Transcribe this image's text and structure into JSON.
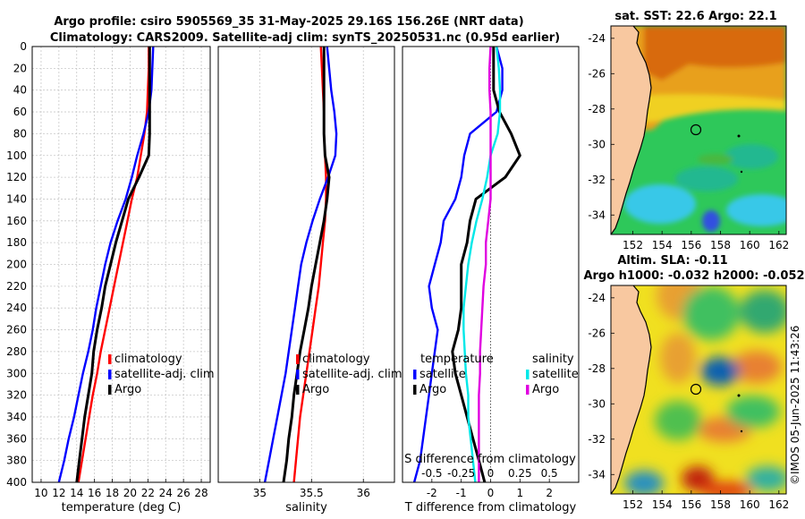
{
  "header": {
    "title_line1": "Argo profile: csiro 5905569_35 31-May-2025 29.16S 156.26E (NRT data)",
    "title_line2": "Climatology: CARS2009. Satellite-adj clim: synTS_20250531.nc (0.95d earlier)"
  },
  "colors": {
    "climatology": "#ff0000",
    "satellite": "#0000ff",
    "argo": "#000000",
    "sal_sat": "#00e8e8",
    "sal_argo": "#e000e0",
    "land": "#f8c8a0"
  },
  "chart_data": [
    {
      "type": "line",
      "name": "temperature",
      "xlabel": "temperature (deg C)",
      "ylabel": "",
      "xlim": [
        9,
        29
      ],
      "ylim": [
        400,
        0
      ],
      "x_ticks": [
        "10",
        "12",
        "14",
        "16",
        "18",
        "20",
        "22",
        "24",
        "26",
        "28"
      ],
      "y_ticks": [
        "0",
        "20",
        "40",
        "60",
        "80",
        "100",
        "120",
        "140",
        "160",
        "180",
        "200",
        "220",
        "240",
        "260",
        "280",
        "300",
        "320",
        "340",
        "360",
        "380",
        "400"
      ],
      "grid": true,
      "legend": [
        "climatology",
        "satellite-adj. clim",
        "Argo"
      ],
      "depth": [
        0,
        20,
        40,
        60,
        80,
        100,
        120,
        140,
        160,
        180,
        200,
        220,
        240,
        260,
        280,
        300,
        320,
        340,
        360,
        380,
        400
      ],
      "series": [
        {
          "name": "climatology",
          "values": [
            22.1,
            22.1,
            22.0,
            21.9,
            21.6,
            21.2,
            20.8,
            20.2,
            19.7,
            19.2,
            18.7,
            18.2,
            17.7,
            17.2,
            16.7,
            16.3,
            15.8,
            15.4,
            15.0,
            14.6,
            14.2
          ]
        },
        {
          "name": "satellite-adj. clim",
          "values": [
            22.6,
            22.5,
            22.4,
            22.1,
            21.5,
            20.8,
            20.2,
            19.5,
            18.6,
            17.8,
            17.2,
            16.7,
            16.2,
            15.8,
            15.3,
            14.7,
            14.2,
            13.7,
            13.1,
            12.6,
            12.0
          ]
        },
        {
          "name": "Argo",
          "values": [
            22.2,
            22.2,
            22.2,
            22.2,
            22.2,
            22.1,
            21.0,
            19.8,
            19.1,
            18.4,
            17.8,
            17.2,
            16.8,
            16.3,
            15.9,
            15.7,
            15.3,
            14.9,
            14.6,
            14.3,
            14.0
          ]
        }
      ]
    },
    {
      "type": "line",
      "name": "salinity",
      "xlabel": "salinity",
      "xlim": [
        34.6,
        36.3
      ],
      "ylim": [
        400,
        0
      ],
      "x_ticks": [
        "35",
        "35.5",
        "36"
      ],
      "grid": true,
      "legend": [
        "climatology",
        "satellite-adj. clim",
        "Argo"
      ],
      "depth": [
        0,
        20,
        40,
        60,
        80,
        100,
        120,
        140,
        160,
        180,
        200,
        220,
        240,
        260,
        280,
        300,
        320,
        340,
        360,
        380,
        400
      ],
      "series": [
        {
          "name": "climatology",
          "values": [
            35.59,
            35.6,
            35.61,
            35.62,
            35.62,
            35.63,
            35.64,
            35.64,
            35.63,
            35.61,
            35.59,
            35.57,
            35.54,
            35.51,
            35.48,
            35.45,
            35.42,
            35.39,
            35.37,
            35.35,
            35.33
          ]
        },
        {
          "name": "satellite-adj. clim",
          "values": [
            35.65,
            35.67,
            35.69,
            35.72,
            35.74,
            35.73,
            35.66,
            35.58,
            35.51,
            35.45,
            35.4,
            35.37,
            35.34,
            35.31,
            35.28,
            35.25,
            35.21,
            35.17,
            35.13,
            35.09,
            35.05
          ]
        },
        {
          "name": "Argo",
          "values": [
            35.62,
            35.62,
            35.62,
            35.62,
            35.62,
            35.63,
            35.67,
            35.65,
            35.62,
            35.58,
            35.54,
            35.5,
            35.47,
            35.43,
            35.39,
            35.36,
            35.33,
            35.31,
            35.28,
            35.26,
            35.23
          ]
        }
      ]
    },
    {
      "type": "line",
      "name": "difference from climatology",
      "xlabel": "T difference from climatology",
      "xlabel_top": "S difference from climatology",
      "xlim": [
        -3,
        3
      ],
      "ylim": [
        400,
        0
      ],
      "x_ticks": [
        "-2",
        "-1",
        "0",
        "1",
        "2"
      ],
      "x2_ticks": [
        "-0.5",
        "-0.25",
        "0",
        "0.25",
        "0.5"
      ],
      "legend_titles": [
        "temperature",
        "salinity"
      ],
      "legend": [
        "satellite",
        "Argo",
        "satellite",
        "Argo"
      ],
      "depth": [
        0,
        20,
        40,
        60,
        80,
        100,
        120,
        140,
        160,
        180,
        200,
        220,
        240,
        260,
        280,
        300,
        320,
        340,
        360,
        380,
        400
      ],
      "series": [
        {
          "name": "temperature satellite",
          "values": [
            0.2,
            0.4,
            0.4,
            0.2,
            -0.7,
            -0.9,
            -1.0,
            -1.2,
            -1.6,
            -1.7,
            -1.9,
            -2.1,
            -2.0,
            -1.8,
            -1.9,
            -2.0,
            -2.1,
            -2.2,
            -2.3,
            -2.4,
            -2.6
          ]
        },
        {
          "name": "temperature Argo",
          "values": [
            0.1,
            0.1,
            0.1,
            0.3,
            0.7,
            1.0,
            0.5,
            -0.5,
            -0.7,
            -0.8,
            -1.0,
            -1.0,
            -1.0,
            -1.1,
            -1.3,
            -1.2,
            -1.0,
            -0.8,
            -0.6,
            -0.4,
            -0.2
          ]
        },
        {
          "name": "salinity satellite",
          "values": [
            0.05,
            0.07,
            0.08,
            0.08,
            0.06,
            0.0,
            -0.03,
            -0.07,
            -0.12,
            -0.16,
            -0.19,
            -0.21,
            -0.23,
            -0.23,
            -0.22,
            -0.21,
            -0.19,
            -0.19,
            -0.17,
            -0.15,
            -0.13
          ]
        },
        {
          "name": "salinity Argo",
          "values": [
            0.0,
            -0.01,
            -0.01,
            0.0,
            0.0,
            0.0,
            0.0,
            0.0,
            -0.02,
            -0.04,
            -0.04,
            -0.06,
            -0.07,
            -0.08,
            -0.09,
            -0.09,
            -0.1,
            -0.1,
            -0.1,
            -0.1,
            -0.1
          ]
        }
      ]
    },
    {
      "type": "heatmap",
      "name": "sat SST map",
      "title": "sat. SST: 22.6 Argo: 22.1",
      "x_ticks": [
        "152",
        "154",
        "156",
        "158",
        "160",
        "162"
      ],
      "y_ticks": [
        "-24",
        "-26",
        "-28",
        "-30",
        "-32",
        "-34"
      ],
      "argo_position": {
        "lon": 156.26,
        "lat": -29.16
      }
    },
    {
      "type": "heatmap",
      "name": "altimetry SLA map",
      "title": "Altim. SLA: -0.11",
      "subtitle": "Argo h1000: -0.032 h2000: -0.052",
      "x_ticks": [
        "152",
        "154",
        "156",
        "158",
        "160",
        "162"
      ],
      "y_ticks": [
        "-24",
        "-26",
        "-28",
        "-30",
        "-32",
        "-34"
      ],
      "argo_position": {
        "lon": 156.26,
        "lat": -29.16
      }
    }
  ],
  "credit": "©IMOS 05-Jun-2025 11:43:26"
}
